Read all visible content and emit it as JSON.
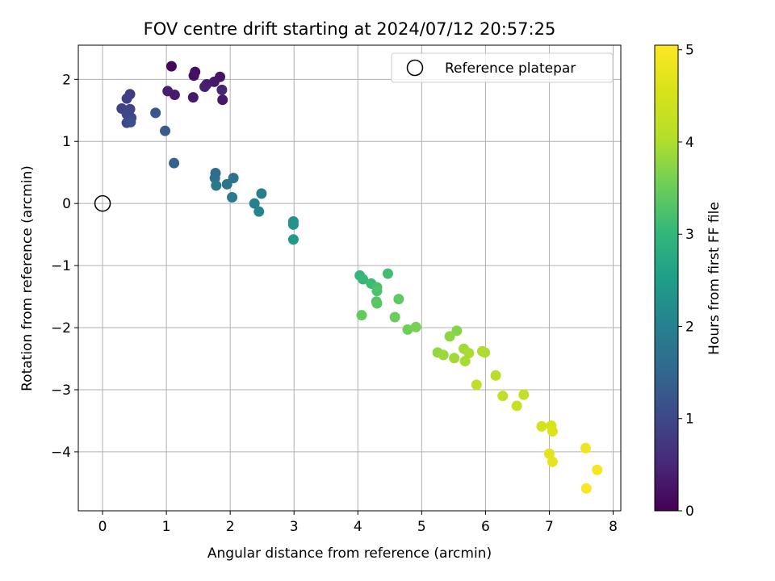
{
  "chart_data": {
    "type": "scatter",
    "title": "FOV centre drift starting at 2024/07/12 20:57:25",
    "xlabel": "Angular distance from reference (arcmin)",
    "ylabel": "Rotation from reference (arcmin)",
    "xlim": [
      -0.38,
      8.12
    ],
    "ylim": [
      -4.95,
      2.55
    ],
    "xticks": [
      0,
      1,
      2,
      3,
      4,
      5,
      6,
      7,
      8
    ],
    "yticks": [
      2,
      1,
      0,
      -1,
      -2,
      -3,
      -4
    ],
    "xtick_labels": [
      "0",
      "1",
      "2",
      "3",
      "4",
      "5",
      "6",
      "7",
      "8"
    ],
    "ytick_labels": [
      "2",
      "1",
      "0",
      "−1",
      "−2",
      "−3",
      "−4"
    ],
    "grid": true,
    "legend": {
      "position": "top-right",
      "entries": [
        "Reference platepar"
      ]
    },
    "reference_point": {
      "name": "Reference platepar",
      "x": 0,
      "y": 0
    },
    "colorbar": {
      "label": "Hours from first FF file",
      "range": [
        0,
        5.05
      ],
      "ticks": [
        0,
        1,
        2,
        3,
        4,
        5
      ],
      "tick_labels": [
        "0",
        "1",
        "2",
        "3",
        "4",
        "5"
      ],
      "colormap": "viridis"
    },
    "points": [
      {
        "x": 1.08,
        "y": 2.21,
        "h": 0.1
      },
      {
        "x": 1.43,
        "y": 2.06,
        "h": 0.15
      },
      {
        "x": 1.45,
        "y": 2.12,
        "h": 0.2
      },
      {
        "x": 1.84,
        "y": 2.04,
        "h": 0.25
      },
      {
        "x": 1.75,
        "y": 1.96,
        "h": 0.3
      },
      {
        "x": 1.63,
        "y": 1.92,
        "h": 0.35
      },
      {
        "x": 1.6,
        "y": 1.88,
        "h": 0.4
      },
      {
        "x": 1.87,
        "y": 1.83,
        "h": 0.45
      },
      {
        "x": 1.02,
        "y": 1.81,
        "h": 0.4
      },
      {
        "x": 1.13,
        "y": 1.75,
        "h": 0.35
      },
      {
        "x": 1.42,
        "y": 1.71,
        "h": 0.3
      },
      {
        "x": 1.88,
        "y": 1.67,
        "h": 0.3
      },
      {
        "x": 0.43,
        "y": 1.76,
        "h": 0.8
      },
      {
        "x": 0.38,
        "y": 1.69,
        "h": 0.85
      },
      {
        "x": 0.3,
        "y": 1.53,
        "h": 0.9
      },
      {
        "x": 0.43,
        "y": 1.52,
        "h": 0.95
      },
      {
        "x": 0.38,
        "y": 1.44,
        "h": 1.0
      },
      {
        "x": 0.45,
        "y": 1.38,
        "h": 1.0
      },
      {
        "x": 0.38,
        "y": 1.3,
        "h": 1.05
      },
      {
        "x": 0.44,
        "y": 1.31,
        "h": 1.1
      },
      {
        "x": 0.83,
        "y": 1.46,
        "h": 1.2
      },
      {
        "x": 0.98,
        "y": 1.17,
        "h": 1.3
      },
      {
        "x": 1.12,
        "y": 0.65,
        "h": 1.4
      },
      {
        "x": 1.77,
        "y": 0.49,
        "h": 1.6
      },
      {
        "x": 1.76,
        "y": 0.41,
        "h": 1.65
      },
      {
        "x": 2.05,
        "y": 0.41,
        "h": 1.7
      },
      {
        "x": 1.95,
        "y": 0.31,
        "h": 1.75
      },
      {
        "x": 1.78,
        "y": 0.29,
        "h": 1.8
      },
      {
        "x": 2.03,
        "y": 0.1,
        "h": 1.85
      },
      {
        "x": 2.49,
        "y": 0.16,
        "h": 1.95
      },
      {
        "x": 2.38,
        "y": 0.0,
        "h": 2.0
      },
      {
        "x": 2.45,
        "y": -0.13,
        "h": 2.05
      },
      {
        "x": 2.99,
        "y": -0.29,
        "h": 2.3
      },
      {
        "x": 2.99,
        "y": -0.34,
        "h": 2.35
      },
      {
        "x": 2.99,
        "y": -0.58,
        "h": 2.45
      },
      {
        "x": 4.03,
        "y": -1.16,
        "h": 3.0
      },
      {
        "x": 4.08,
        "y": -1.22,
        "h": 3.05
      },
      {
        "x": 4.21,
        "y": -1.29,
        "h": 3.1
      },
      {
        "x": 4.47,
        "y": -1.13,
        "h": 3.15
      },
      {
        "x": 4.3,
        "y": -1.35,
        "h": 3.2
      },
      {
        "x": 4.3,
        "y": -1.41,
        "h": 3.25
      },
      {
        "x": 4.29,
        "y": -1.58,
        "h": 3.3
      },
      {
        "x": 4.3,
        "y": -1.61,
        "h": 3.35
      },
      {
        "x": 4.64,
        "y": -1.54,
        "h": 3.4
      },
      {
        "x": 4.06,
        "y": -1.8,
        "h": 3.45
      },
      {
        "x": 4.58,
        "y": -1.83,
        "h": 3.5
      },
      {
        "x": 4.78,
        "y": -2.03,
        "h": 3.55
      },
      {
        "x": 4.91,
        "y": -1.99,
        "h": 3.6
      },
      {
        "x": 5.55,
        "y": -2.05,
        "h": 3.7
      },
      {
        "x": 5.44,
        "y": -2.14,
        "h": 3.75
      },
      {
        "x": 5.25,
        "y": -2.4,
        "h": 3.8
      },
      {
        "x": 5.34,
        "y": -2.44,
        "h": 3.85
      },
      {
        "x": 5.51,
        "y": -2.49,
        "h": 3.9
      },
      {
        "x": 5.66,
        "y": -2.34,
        "h": 3.9
      },
      {
        "x": 5.74,
        "y": -2.41,
        "h": 3.95
      },
      {
        "x": 5.68,
        "y": -2.54,
        "h": 3.95
      },
      {
        "x": 5.95,
        "y": -2.38,
        "h": 4.0
      },
      {
        "x": 5.99,
        "y": -2.4,
        "h": 4.0
      },
      {
        "x": 6.16,
        "y": -2.77,
        "h": 4.1
      },
      {
        "x": 5.86,
        "y": -2.92,
        "h": 4.15
      },
      {
        "x": 6.27,
        "y": -3.1,
        "h": 4.2
      },
      {
        "x": 6.6,
        "y": -3.08,
        "h": 4.25
      },
      {
        "x": 6.49,
        "y": -3.26,
        "h": 4.3
      },
      {
        "x": 6.88,
        "y": -3.59,
        "h": 4.5
      },
      {
        "x": 7.03,
        "y": -3.58,
        "h": 4.55
      },
      {
        "x": 7.05,
        "y": -3.67,
        "h": 4.6
      },
      {
        "x": 7.0,
        "y": -4.03,
        "h": 4.7
      },
      {
        "x": 7.05,
        "y": -4.16,
        "h": 4.75
      },
      {
        "x": 7.57,
        "y": -3.94,
        "h": 4.85
      },
      {
        "x": 7.75,
        "y": -4.29,
        "h": 4.95
      },
      {
        "x": 7.58,
        "y": -4.59,
        "h": 5.0
      }
    ]
  }
}
